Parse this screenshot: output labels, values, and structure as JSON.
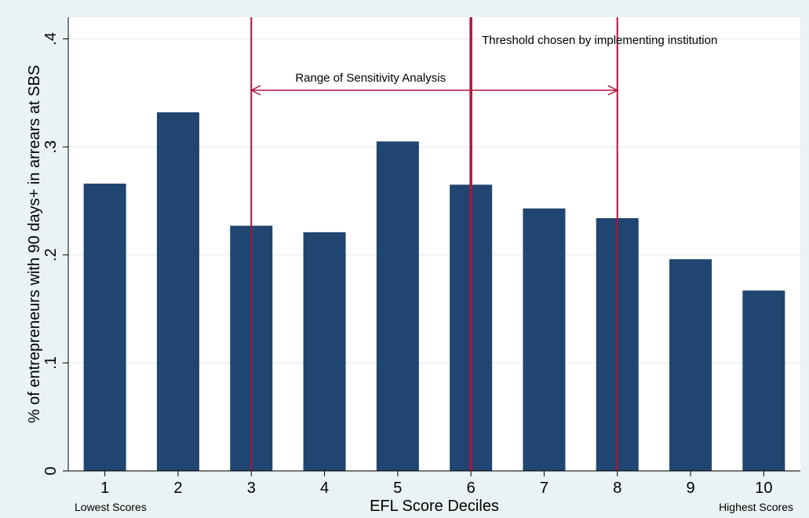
{
  "chart_data": {
    "type": "bar",
    "categories": [
      "1",
      "2",
      "3",
      "4",
      "5",
      "6",
      "7",
      "8",
      "9",
      "10"
    ],
    "values": [
      0.266,
      0.332,
      0.227,
      0.221,
      0.305,
      0.265,
      0.243,
      0.234,
      0.196,
      0.167
    ],
    "xlabel": "EFL Score Deciles",
    "ylabel": "% of entrepreneurs with 90 days+ in arrears at SBS",
    "ylim": [
      0,
      0.42
    ],
    "yticks": [
      {
        "value": 0,
        "label": "0"
      },
      {
        "value": 0.1,
        "label": ".1"
      },
      {
        "value": 0.2,
        "label": ".2"
      },
      {
        "value": 0.3,
        "label": ".3"
      },
      {
        "value": 0.4,
        "label": ".4"
      }
    ],
    "grid": true,
    "bar_color": "#1f4570",
    "line_color": "#b0123c",
    "x_end_notes": {
      "left": "Lowest Scores",
      "right": "Highest Scores"
    },
    "annotations": {
      "threshold": {
        "text": "Threshold chosen by implementing institution",
        "x": 6
      },
      "range": {
        "text": "Range of Sensitivity Analysis",
        "from": 3,
        "to": 8
      }
    }
  }
}
